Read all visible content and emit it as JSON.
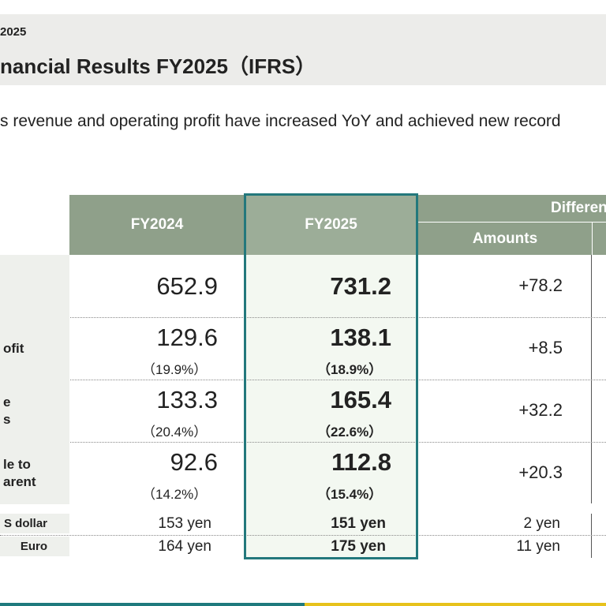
{
  "header": {
    "date": "2025",
    "title": "nancial Results FY2025（IFRS）"
  },
  "subtitle": "s revenue and operating profit have increased YoY and achieved new record",
  "table": {
    "columns": {
      "fy2024": "FY2024",
      "fy2025": "FY2025",
      "differences": "Differen",
      "amounts": "Amounts"
    },
    "rows": [
      {
        "fy2024": "652.9",
        "fy2025": "731.2",
        "difference": "+78.2"
      },
      {
        "label": "ofit",
        "fy2024": "129.6",
        "fy2024_ratio": "（19.9%）",
        "fy2025": "138.1",
        "fy2025_ratio": "（18.9%）",
        "difference": "+8.5"
      },
      {
        "label": "e\ns",
        "fy2024": "133.3",
        "fy2024_ratio": "（20.4%）",
        "fy2025": "165.4",
        "fy2025_ratio": "（22.6%）",
        "difference": "+32.2"
      },
      {
        "label": "le to\narent",
        "fy2024": "92.6",
        "fy2024_ratio": "（14.2%）",
        "fy2025": "112.8",
        "fy2025_ratio": "（15.4%）",
        "difference": "+20.3"
      }
    ],
    "rates": [
      {
        "label": "S dollar",
        "fy2024": "153 yen",
        "fy2025": "151 yen",
        "difference": "2 yen"
      },
      {
        "label": "Euro",
        "fy2024": "164 yen",
        "fy2025": "175 yen",
        "difference": "11 yen"
      }
    ]
  }
}
